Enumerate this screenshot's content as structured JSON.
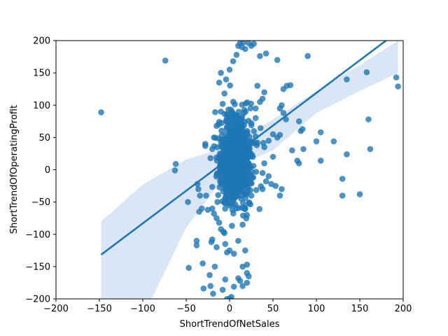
{
  "chart_data": {
    "type": "scatter",
    "title": "",
    "xlabel": "ShortTrendOfNetSales",
    "ylabel": "ShortTrendOfOperatingProfit",
    "xlim": [
      -200,
      200
    ],
    "ylim": [
      -200,
      200
    ],
    "xticks": [
      "−200",
      "−150",
      "−100",
      "−50",
      "0",
      "50",
      "100",
      "150",
      "200"
    ],
    "yticks": [
      "−200",
      "−150",
      "−100",
      "−50",
      "0",
      "50",
      "100",
      "150",
      "200"
    ],
    "grid": false,
    "legend": "none",
    "colors": {
      "points": "#1f77b4",
      "line": "#1f77b4",
      "band": "#aec7e8"
    },
    "regression": {
      "x_range": [
        -148,
        194
      ],
      "slope": 1.01,
      "intercept": 18,
      "ci_upper": [
        [
          -148,
          -80
        ],
        [
          -100,
          -23
        ],
        [
          -50,
          16
        ],
        [
          0,
          36
        ],
        [
          50,
          78
        ],
        [
          100,
          122
        ],
        [
          150,
          162
        ],
        [
          194,
          200
        ]
      ],
      "ci_lower": [
        [
          -148,
          -200
        ],
        [
          -90,
          -200
        ],
        [
          -50,
          -90
        ],
        [
          0,
          1
        ],
        [
          50,
          30
        ],
        [
          100,
          88
        ],
        [
          150,
          122
        ],
        [
          194,
          150
        ]
      ]
    },
    "outliers": [
      [
        -148,
        89
      ],
      [
        -74,
        169
      ],
      [
        -63,
        -1
      ],
      [
        -62,
        9
      ],
      [
        -48,
        -50
      ],
      [
        -47,
        -152
      ],
      [
        -38,
        -110
      ],
      [
        -38,
        -117
      ],
      [
        -37,
        -22
      ],
      [
        -36,
        -30
      ],
      [
        -35,
        -65
      ],
      [
        -34,
        -40
      ],
      [
        -32,
        -60
      ],
      [
        -31,
        -145
      ],
      [
        -30,
        -184
      ],
      [
        -28,
        37
      ],
      [
        -28,
        40
      ],
      [
        -27,
        -40
      ],
      [
        -25,
        -62
      ],
      [
        -23,
        -163
      ],
      [
        -22,
        -180
      ],
      [
        -21,
        -112
      ],
      [
        -20,
        -108
      ],
      [
        -19,
        -192
      ],
      [
        -17,
        -150
      ],
      [
        -15,
        -120
      ],
      [
        -14,
        -50
      ],
      [
        -12,
        135
      ],
      [
        -10,
        150
      ],
      [
        -8,
        -186
      ],
      [
        -6,
        -98
      ],
      [
        -5,
        -170
      ],
      [
        -3,
        -200
      ],
      [
        0,
        -200
      ],
      [
        2,
        -197
      ],
      [
        5,
        -181
      ],
      [
        10,
        -168
      ],
      [
        12,
        -172
      ],
      [
        15,
        -180
      ],
      [
        20,
        -175
      ],
      [
        20,
        -160
      ],
      [
        22,
        -165
      ],
      [
        20,
        -147
      ],
      [
        18,
        -125
      ],
      [
        15,
        -150
      ],
      [
        35,
        176
      ],
      [
        42,
        180
      ],
      [
        55,
        170
      ],
      [
        62,
        125
      ],
      [
        66,
        130
      ],
      [
        70,
        131
      ],
      [
        60,
        100
      ],
      [
        58,
        95
      ],
      [
        62,
        88
      ],
      [
        65,
        78
      ],
      [
        72,
        30
      ],
      [
        80,
        75
      ],
      [
        82,
        60
      ],
      [
        84,
        63
      ],
      [
        85,
        32
      ],
      [
        78,
        14
      ],
      [
        80,
        10
      ],
      [
        90,
        176
      ],
      [
        100,
        44
      ],
      [
        105,
        58
      ],
      [
        105,
        14
      ],
      [
        120,
        44
      ],
      [
        130,
        -14
      ],
      [
        130,
        -40
      ],
      [
        135,
        24
      ],
      [
        135,
        140
      ],
      [
        150,
        -38
      ],
      [
        158,
        151
      ],
      [
        160,
        78
      ],
      [
        162,
        32
      ],
      [
        192,
        143
      ],
      [
        194,
        129
      ],
      [
        55,
        50
      ],
      [
        58,
        54
      ],
      [
        50,
        20
      ],
      [
        60,
        -30
      ],
      [
        58,
        -40
      ],
      [
        53,
        -25
      ],
      [
        48,
        -22
      ],
      [
        45,
        -10
      ],
      [
        42,
        -18
      ],
      [
        38,
        -30
      ],
      [
        40,
        10
      ],
      [
        40,
        35
      ],
      [
        45,
        45
      ],
      [
        50,
        55
      ],
      [
        38,
        -5
      ],
      [
        32,
        42
      ],
      [
        28,
        60
      ],
      [
        30,
        80
      ],
      [
        30,
        95
      ],
      [
        35,
        105
      ],
      [
        38,
        110
      ],
      [
        40,
        120
      ],
      [
        32,
        130
      ],
      [
        25,
        -40
      ],
      [
        22,
        -52
      ],
      [
        18,
        -60
      ],
      [
        20,
        -70
      ],
      [
        15,
        -85
      ],
      [
        10,
        -110
      ],
      [
        5,
        -130
      ],
      [
        0,
        -125
      ],
      [
        -3,
        -128
      ],
      [
        -5,
        -115
      ],
      [
        -7,
        -96
      ],
      [
        -10,
        -92
      ],
      [
        -12,
        -82
      ],
      [
        -15,
        -75
      ],
      [
        -18,
        -68
      ],
      [
        -20,
        -60
      ],
      [
        -22,
        18
      ],
      [
        -20,
        32
      ],
      [
        -18,
        50
      ],
      [
        -15,
        68
      ],
      [
        -12,
        74
      ],
      [
        -10,
        90
      ],
      [
        -8,
        102
      ],
      [
        -6,
        118
      ],
      [
        -4,
        140
      ],
      [
        0,
        155
      ],
      [
        4,
        168
      ],
      [
        8,
        178
      ],
      [
        10,
        192
      ],
      [
        12,
        196
      ],
      [
        14,
        190
      ],
      [
        16,
        197
      ],
      [
        18,
        187
      ],
      [
        22,
        196
      ],
      [
        25,
        192
      ],
      [
        28,
        195
      ]
    ]
  }
}
